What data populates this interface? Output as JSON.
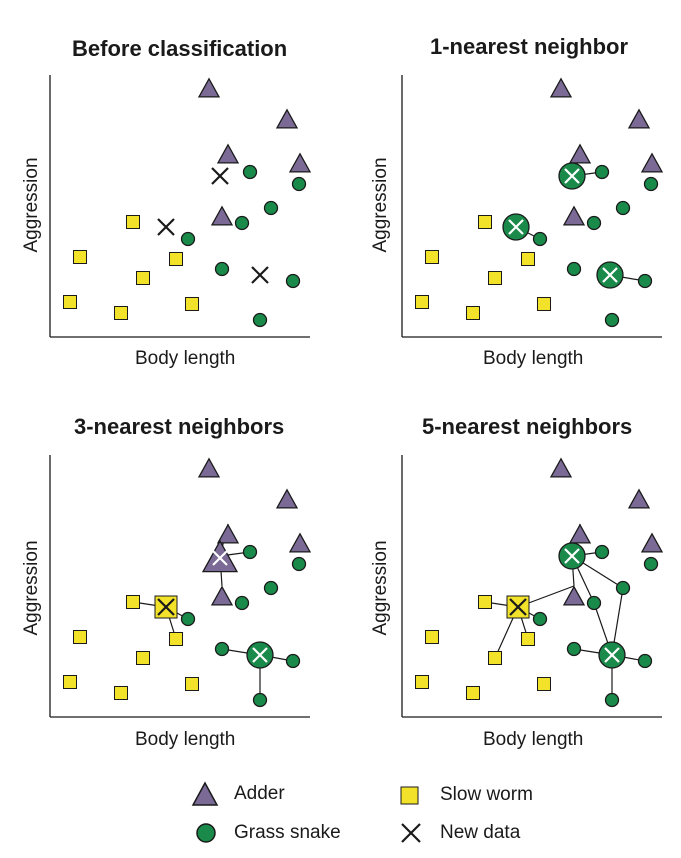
{
  "panels": [
    {
      "id": "before",
      "title": "Before classification",
      "xlabel": "Body length",
      "ylabel": "Aggression"
    },
    {
      "id": "k1",
      "title": "1-nearest neighbor",
      "xlabel": "Body length",
      "ylabel": "Aggression"
    },
    {
      "id": "k3",
      "title": "3-nearest neighbors",
      "xlabel": "Body length",
      "ylabel": "Aggression"
    },
    {
      "id": "k5",
      "title": "5-nearest neighbors",
      "xlabel": "Body length",
      "ylabel": "Aggression"
    }
  ],
  "legend": {
    "adder": "Adder",
    "grass_snake": "Grass snake",
    "slow_worm": "Slow worm",
    "new_data": "New data"
  },
  "colors": {
    "adder": "#7a6a95",
    "grass_snake": "#1a8a4a",
    "slow_worm": "#f2e22a",
    "outline": "#1a1a1a"
  }
}
